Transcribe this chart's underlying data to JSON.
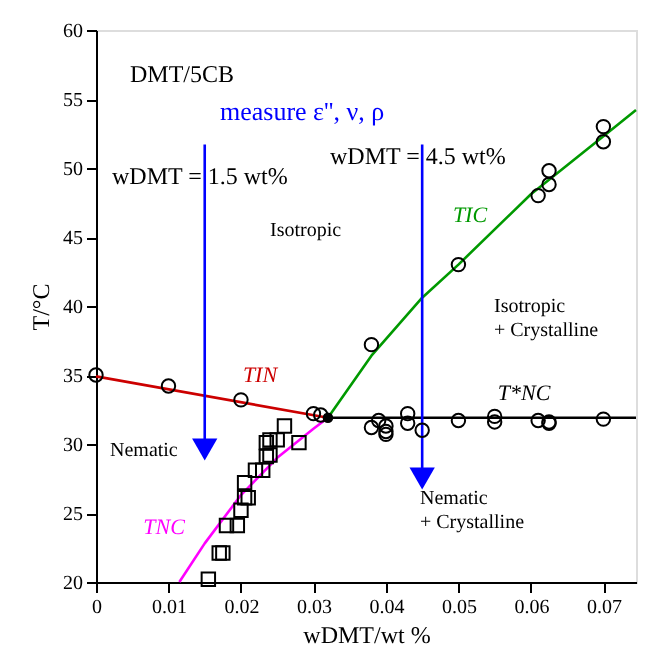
{
  "chart_data": {
    "type": "scatter",
    "xlabel": "wDMT/wt %",
    "ylabel": "T/°C",
    "xlim": [
      0,
      0.0745
    ],
    "ylim": [
      20,
      60
    ],
    "xticks": [
      0,
      0.01,
      0.02,
      0.03,
      0.04,
      0.05,
      0.06,
      0.07
    ],
    "yticks": [
      20,
      25,
      30,
      35,
      40,
      45,
      50,
      55,
      60
    ],
    "grid": false,
    "series": [
      {
        "type": "line",
        "color": "#cc0000",
        "marker": "none",
        "line_style": "solid",
        "x": [
          0,
          0.032
        ],
        "values": [
          34.9,
          31.9
        ]
      },
      {
        "type": "line",
        "color": "#009900",
        "marker": "none",
        "line_style": "solid",
        "x": [
          0.032,
          0.038,
          0.045,
          0.05,
          0.06,
          0.07,
          0.0745
        ],
        "values": [
          31.9,
          36.4,
          40.6,
          43.0,
          48.1,
          52.3,
          54.2
        ]
      },
      {
        "type": "line",
        "color": "#ff00ff",
        "marker": "none",
        "line_style": "solid",
        "x": [
          0.0115,
          0.015,
          0.02,
          0.025,
          0.03,
          0.032
        ],
        "values": [
          20,
          22.8,
          26.3,
          29.0,
          31.1,
          31.9
        ]
      },
      {
        "type": "line",
        "color": "#000000",
        "marker": "none",
        "line_style": "solid",
        "x": [
          0.032,
          0.0745
        ],
        "values": [
          31.9,
          31.9
        ]
      },
      {
        "type": "line",
        "color": "#0000ff",
        "marker": "triangle",
        "line_style": "solid",
        "x": [
          0.015,
          0.015
        ],
        "values": [
          51.7,
          29.6
        ]
      },
      {
        "type": "line",
        "color": "#0000ff",
        "marker": "triangle",
        "line_style": "solid",
        "x": [
          0.045,
          0.045
        ],
        "values": [
          51.7,
          27.5
        ]
      },
      {
        "color": "#000000",
        "marker": "circle",
        "x": [
          0,
          0.01,
          0.02,
          0.03,
          0.031,
          0.038,
          0.038,
          0.039,
          0.04,
          0.04,
          0.04,
          0.043,
          0.043,
          0.045,
          0.05,
          0.055,
          0.055,
          0.061,
          0.0625,
          0.0625,
          0.07,
          0.05,
          0.061,
          0.0625,
          0.0625,
          0.07,
          0.07
        ],
        "values": [
          35,
          34.2,
          33.2,
          32.2,
          32.1,
          37.2,
          31.2,
          31.7,
          31.3,
          30.9,
          30.7,
          32.2,
          31.5,
          31.0,
          31.7,
          32.0,
          31.6,
          31.7,
          31.6,
          31.5,
          31.8,
          43,
          48,
          48.8,
          49.8,
          53,
          51.9
        ]
      },
      {
        "color": "#000000",
        "marker": "square",
        "x": [
          0.0155,
          0.017,
          0.0175,
          0.018,
          0.0195,
          0.02,
          0.0205,
          0.021,
          0.0205,
          0.022,
          0.023,
          0.0235,
          0.024,
          0.0235,
          0.024,
          0.025,
          0.026,
          0.028
        ],
        "values": [
          20.2,
          22.1,
          22.1,
          24.1,
          24.1,
          25.2,
          26.1,
          26.1,
          27.2,
          28.1,
          28.1,
          29.1,
          29.2,
          30.1,
          30.3,
          30.3,
          31.3,
          30.1
        ]
      },
      {
        "color": "#000000",
        "marker": "circle",
        "x": [
          0.032
        ],
        "values": [
          31.9
        ]
      }
    ],
    "annotations": [
      "DMT/5CB",
      "measure ε'', ν, ρ",
      "wDMT = 1.5 wt%",
      "wDMT = 4.5 wt%",
      "Isotropic",
      "Isotropic\n+ Crystalline",
      "Nematic",
      "Nematic\n+ Crystalline",
      "TIC",
      "TIN",
      "TNC",
      "T*NC"
    ]
  }
}
